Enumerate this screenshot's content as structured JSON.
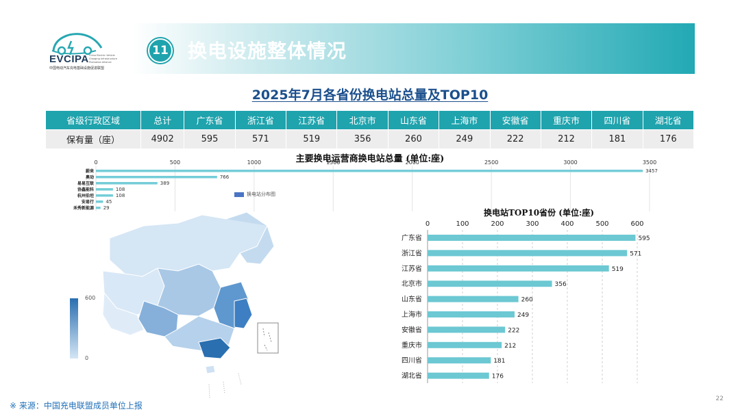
{
  "header": {
    "section_number": "11",
    "section_title": "换电设施整体情况",
    "logo_text": "EVCIPA",
    "logo_subtitle": "中国电动汽车充电基础设施促进联盟",
    "logo_side_text": "China Electric Vehicle Charging Infrastructure Promotion Alliance"
  },
  "main_title": "2025年7月各省份换电站总量及TOP10",
  "summary_table": {
    "header": [
      "省级行政区域",
      "总计",
      "广东省",
      "浙江省",
      "江苏省",
      "北京市",
      "山东省",
      "上海市",
      "安徽省",
      "重庆市",
      "四川省",
      "湖北省"
    ],
    "row": [
      "保有量（座）",
      "4902",
      "595",
      "571",
      "519",
      "356",
      "260",
      "249",
      "222",
      "212",
      "181",
      "176"
    ]
  },
  "map_legend": {
    "label": "换电站分布图",
    "max": "600",
    "min": "0"
  },
  "footnote": "※  来源：中国充电联盟成员单位上报",
  "page_number": "22",
  "colors": {
    "accent": "#1fa3ad",
    "bar_operator": "#74cdd8",
    "bar_province": "#6cc8d3",
    "title_blue": "#1b4f8c",
    "map_dark": "#2a6fb0",
    "map_light": "#d5e6f5"
  },
  "chart_data": [
    {
      "type": "bar",
      "orientation": "horizontal",
      "title": "主要换电运营商换电站总量 (单位:座)",
      "categories": [
        "蔚来",
        "奥动",
        "易易互联",
        "协鑫能科",
        "杭州伯坦",
        "安易行",
        "禾秀新能源"
      ],
      "values": [
        3457,
        766,
        389,
        108,
        108,
        45,
        29
      ],
      "xlim": [
        0,
        3500
      ],
      "xticks": [
        0,
        500,
        1000,
        1500,
        2000,
        2500,
        3000,
        3500
      ],
      "grid": true
    },
    {
      "type": "bar",
      "orientation": "horizontal",
      "title": "换电站TOP10省份 (单位:座)",
      "categories": [
        "广东省",
        "浙江省",
        "江苏省",
        "北京市",
        "山东省",
        "上海市",
        "安徽省",
        "重庆市",
        "四川省",
        "湖北省"
      ],
      "values": [
        595,
        571,
        519,
        356,
        260,
        249,
        222,
        212,
        181,
        176
      ],
      "xlim": [
        0,
        600
      ],
      "xticks": [
        0,
        100,
        200,
        300,
        400,
        500,
        600
      ],
      "grid": true
    }
  ]
}
